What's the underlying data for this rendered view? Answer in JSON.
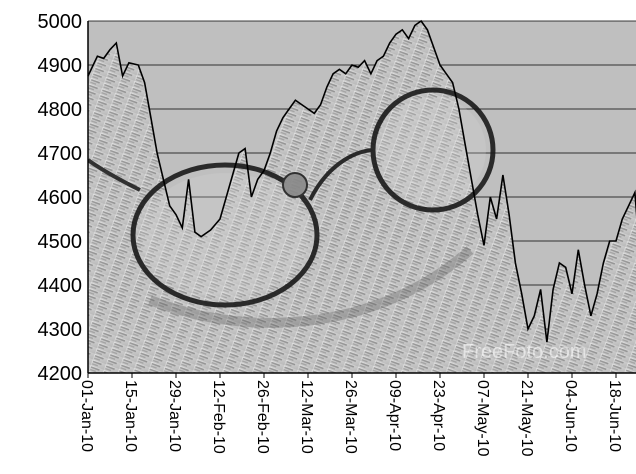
{
  "chart_data": {
    "type": "area",
    "title": "",
    "xlabel": "",
    "ylabel": "",
    "ylim": [
      4200,
      5000
    ],
    "yticks": [
      4200,
      4300,
      4400,
      4500,
      4600,
      4700,
      4800,
      4900,
      5000
    ],
    "grid": true,
    "legend": "none",
    "x_tick_labels": [
      "01-Jan-10",
      "15-Jan-10",
      "29-Jan-10",
      "12-Feb-10",
      "26-Feb-10",
      "12-Mar-10",
      "26-Mar-10",
      "09-Apr-10",
      "23-Apr-10",
      "07-May-10",
      "21-May-10",
      "04-Jun-10",
      "18-Jun-10"
    ],
    "series": [
      {
        "values": [
          [
            "01-Jan-10",
            4875
          ],
          [
            "04-Jan-10",
            4920
          ],
          [
            "06-Jan-10",
            4915
          ],
          [
            "08-Jan-10",
            4935
          ],
          [
            "10-Jan-10",
            4950
          ],
          [
            "12-Jan-10",
            4875
          ],
          [
            "14-Jan-10",
            4905
          ],
          [
            "17-Jan-10",
            4900
          ],
          [
            "19-Jan-10",
            4860
          ],
          [
            "21-Jan-10",
            4780
          ],
          [
            "23-Jan-10",
            4700
          ],
          [
            "25-Jan-10",
            4640
          ],
          [
            "27-Jan-10",
            4580
          ],
          [
            "29-Jan-10",
            4560
          ],
          [
            "31-Jan-10",
            4530
          ],
          [
            "02-Feb-10",
            4640
          ],
          [
            "04-Feb-10",
            4520
          ],
          [
            "06-Feb-10",
            4510
          ],
          [
            "09-Feb-10",
            4525
          ],
          [
            "12-Feb-10",
            4550
          ],
          [
            "14-Feb-10",
            4600
          ],
          [
            "16-Feb-10",
            4650
          ],
          [
            "18-Feb-10",
            4700
          ],
          [
            "20-Feb-10",
            4710
          ],
          [
            "22-Feb-10",
            4600
          ],
          [
            "24-Feb-10",
            4640
          ],
          [
            "26-Feb-10",
            4660
          ],
          [
            "28-Feb-10",
            4700
          ],
          [
            "02-Mar-10",
            4750
          ],
          [
            "04-Mar-10",
            4780
          ],
          [
            "06-Mar-10",
            4800
          ],
          [
            "08-Mar-10",
            4820
          ],
          [
            "10-Mar-10",
            4810
          ],
          [
            "12-Mar-10",
            4800
          ],
          [
            "14-Mar-10",
            4790
          ],
          [
            "16-Mar-10",
            4810
          ],
          [
            "18-Mar-10",
            4850
          ],
          [
            "20-Mar-10",
            4880
          ],
          [
            "22-Mar-10",
            4890
          ],
          [
            "24-Mar-10",
            4880
          ],
          [
            "26-Mar-10",
            4900
          ],
          [
            "28-Mar-10",
            4895
          ],
          [
            "30-Mar-10",
            4910
          ],
          [
            "01-Apr-10",
            4880
          ],
          [
            "03-Apr-10",
            4910
          ],
          [
            "05-Apr-10",
            4920
          ],
          [
            "07-Apr-10",
            4950
          ],
          [
            "09-Apr-10",
            4970
          ],
          [
            "11-Apr-10",
            4980
          ],
          [
            "13-Apr-10",
            4960
          ],
          [
            "15-Apr-10",
            4990
          ],
          [
            "17-Apr-10",
            5000
          ],
          [
            "19-Apr-10",
            4980
          ],
          [
            "21-Apr-10",
            4940
          ],
          [
            "23-Apr-10",
            4900
          ],
          [
            "25-Apr-10",
            4880
          ],
          [
            "27-Apr-10",
            4860
          ],
          [
            "29-Apr-10",
            4800
          ],
          [
            "01-May-10",
            4720
          ],
          [
            "03-May-10",
            4640
          ],
          [
            "05-May-10",
            4560
          ],
          [
            "07-May-10",
            4490
          ],
          [
            "09-May-10",
            4600
          ],
          [
            "11-May-10",
            4550
          ],
          [
            "13-May-10",
            4650
          ],
          [
            "15-May-10",
            4560
          ],
          [
            "17-May-10",
            4450
          ],
          [
            "19-May-10",
            4380
          ],
          [
            "21-May-10",
            4300
          ],
          [
            "23-May-10",
            4330
          ],
          [
            "25-May-10",
            4390
          ],
          [
            "27-May-10",
            4270
          ],
          [
            "29-May-10",
            4390
          ],
          [
            "31-May-10",
            4450
          ],
          [
            "02-Jun-10",
            4440
          ],
          [
            "04-Jun-10",
            4380
          ],
          [
            "06-Jun-10",
            4480
          ],
          [
            "08-Jun-10",
            4400
          ],
          [
            "10-Jun-10",
            4330
          ],
          [
            "12-Jun-10",
            4380
          ],
          [
            "14-Jun-10",
            4450
          ],
          [
            "16-Jun-10",
            4500
          ],
          [
            "18-Jun-10",
            4500
          ],
          [
            "20-Jun-10",
            4550
          ],
          [
            "22-Jun-10",
            4580
          ],
          [
            "24-Jun-10",
            4610
          ],
          [
            "25-Jun-10",
            4520
          ]
        ]
      }
    ]
  },
  "watermark": "FreeFoto.com"
}
